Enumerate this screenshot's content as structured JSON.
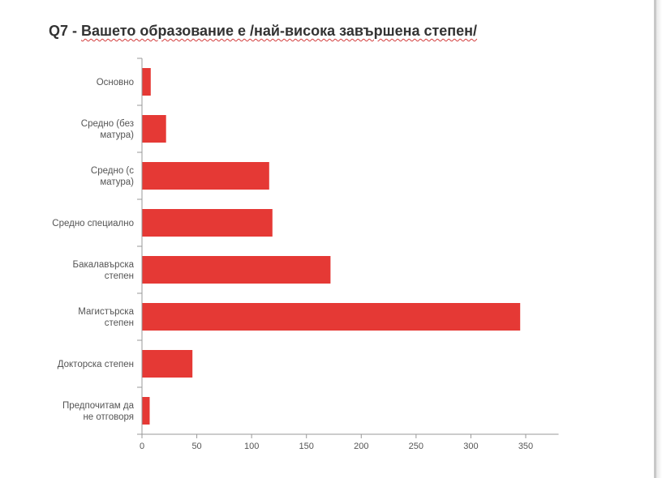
{
  "title_prefix": "Q7 - ",
  "title_words": "Вашето образование е /най-висока завършена степен/",
  "chart_data": {
    "type": "bar",
    "orientation": "horizontal",
    "title": "Q7 - Вашето образование е /най-висока завършена степен/",
    "categories": [
      [
        "Основно"
      ],
      [
        "Средно (без",
        "матура)"
      ],
      [
        "Средно (с",
        "матура)"
      ],
      [
        "Средно специално"
      ],
      [
        "Бакалавърска",
        "степен"
      ],
      [
        "Магистърска",
        "степен"
      ],
      [
        "Докторска степен"
      ],
      [
        "Предпочитам да",
        "не отговоря"
      ]
    ],
    "values": [
      8,
      22,
      116,
      119,
      172,
      345,
      46,
      7
    ],
    "xlim": [
      0,
      380
    ],
    "xticks": [
      0,
      50,
      100,
      150,
      200,
      250,
      300,
      350
    ],
    "bar_color": "#e53935",
    "axis_color": "#999999",
    "grid": false
  }
}
